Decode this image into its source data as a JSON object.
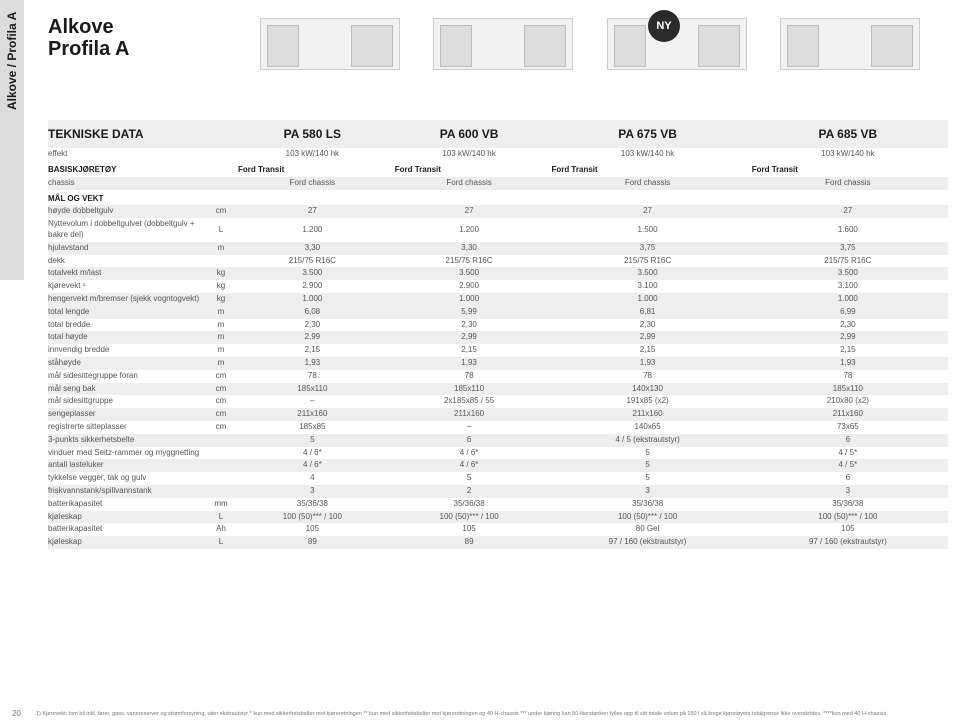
{
  "side_tab": "Alkove / Profila A",
  "title_line1": "Alkove",
  "title_line2": "Profila A",
  "ny_label": "NY",
  "page_number": "20",
  "header": {
    "label": "TEKNISKE DATA",
    "models": [
      "PA 580 LS",
      "PA 600 VB",
      "PA 675 VB",
      "PA 685 VB"
    ]
  },
  "colors": {
    "stripe": "#eeeeee",
    "text": "#555555",
    "heading": "#1a1a1a"
  },
  "sections": [
    {
      "rows": [
        {
          "label": "effekt",
          "unit": "",
          "vals": [
            "103 kW/140 hk",
            "103 kW/140 hk",
            "103 kW/140 hk",
            "103 kW/140 hk"
          ],
          "stripe": false
        }
      ]
    },
    {
      "heading": "BASISKJØRETØY",
      "heading_vals": [
        "Ford Transit",
        "Ford Transit",
        "Ford Transit",
        "Ford Transit"
      ],
      "rows": [
        {
          "label": "chassis",
          "unit": "",
          "vals": [
            "Ford chassis",
            "Ford chassis",
            "Ford chassis",
            "Ford chassis"
          ],
          "stripe": true
        }
      ]
    },
    {
      "heading": "MÅL OG VEKT",
      "rows": [
        {
          "label": "høyde dobbeltgulv",
          "unit": "cm",
          "vals": [
            "27",
            "27",
            "27",
            "27"
          ],
          "stripe": true
        },
        {
          "label": "Nyttevolum i dobbeltgulvet (dobbeltgulv + bakre del)",
          "unit": "L",
          "vals": [
            "1.200",
            "1.200",
            "1.500",
            "1.600"
          ],
          "stripe": false
        },
        {
          "label": "hjulavstand",
          "unit": "m",
          "vals": [
            "3,30",
            "3,30",
            "3,75",
            "3,75"
          ],
          "stripe": true
        },
        {
          "label": "dekk",
          "unit": "",
          "vals": [
            "215/75 R16C",
            "215/75 R16C",
            "215/75 R16C",
            "215/75 R16C"
          ],
          "stripe": false
        },
        {
          "label": "totalvekt m/last",
          "unit": "kg",
          "vals": [
            "3.500",
            "3.500",
            "3.500",
            "3.500"
          ],
          "stripe": true
        },
        {
          "label": "kjørevekt ¹",
          "unit": "kg",
          "vals": [
            "2.900",
            "2.900",
            "3.100",
            "3.100"
          ],
          "stripe": false
        },
        {
          "label": "hengervekt m/bremser (sjekk vogntogvekt)",
          "unit": "kg",
          "vals": [
            "1.000",
            "1.000",
            "1.000",
            "1.000"
          ],
          "stripe": true
        },
        {
          "label": "total lengde",
          "unit": "m",
          "vals": [
            "6,08",
            "5,99",
            "6,81",
            "6,99"
          ],
          "stripe": true
        },
        {
          "label": "total bredde",
          "unit": "m",
          "vals": [
            "2,30",
            "2,30",
            "2,30",
            "2,30"
          ],
          "stripe": false
        },
        {
          "label": "total høyde",
          "unit": "m",
          "vals": [
            "2,99",
            "2,99",
            "2,99",
            "2,99"
          ],
          "stripe": true
        },
        {
          "label": "innvendig bredde",
          "unit": "m",
          "vals": [
            "2,15",
            "2,15",
            "2,15",
            "2,15"
          ],
          "stripe": false
        },
        {
          "label": "ståhøyde",
          "unit": "m",
          "vals": [
            "1,93",
            "1,93",
            "1,93",
            "1,93"
          ],
          "stripe": true
        },
        {
          "label": "mål sidesittegruppe foran",
          "unit": "cm",
          "vals": [
            "78",
            "78",
            "78",
            "78"
          ],
          "stripe": false
        },
        {
          "label": "mål seng bak",
          "unit": "cm",
          "vals": [
            "185x110",
            "185x110",
            "140x130",
            "185x110"
          ],
          "stripe": true
        },
        {
          "label": "mål sidesittgruppe",
          "unit": "cm",
          "vals": [
            "–",
            "2x185x85 / 55",
            "191x85 (x2)",
            "210x80 (x2)"
          ],
          "stripe": false
        },
        {
          "label": "sengeplasser",
          "unit": "cm",
          "vals": [
            "211x160",
            "211x160",
            "211x160",
            "211x160"
          ],
          "stripe": true
        },
        {
          "label": "registrerte sitteplasser",
          "unit": "cm",
          "vals": [
            "185x85",
            "–",
            "140x65",
            "73x65"
          ],
          "stripe": false
        },
        {
          "label": "3-punkts sikkerhetsbelte",
          "unit": "",
          "vals": [
            "5",
            "6",
            "4 / 5 (ekstrautstyr)",
            "6"
          ],
          "stripe": true
        },
        {
          "label": "vinduer med Seitz-rammer og myggnetting",
          "unit": "",
          "vals": [
            "4 / 6*",
            "4 / 6*",
            "5",
            "4 / 5*"
          ],
          "stripe": false
        },
        {
          "label": "antall lasteluker",
          "unit": "",
          "vals": [
            "4 / 6*",
            "4 / 6*",
            "5",
            "4 / 5*"
          ],
          "stripe": true
        },
        {
          "label": "tykkelse vegger, tak og gulv",
          "unit": "",
          "vals": [
            "4",
            "5",
            "5",
            "6"
          ],
          "stripe": false
        },
        {
          "label": "friskvannstank/spillvannstank",
          "unit": "",
          "vals": [
            "3",
            "2",
            "3",
            "3"
          ],
          "stripe": true
        },
        {
          "label": "batterikapasitet",
          "unit": "mm",
          "vals": [
            "35/36/38",
            "35/36/38",
            "35/36/38",
            "35/36/38"
          ],
          "stripe": false
        },
        {
          "label": "kjøleskap",
          "unit": "L",
          "vals": [
            "100 (50)*** / 100",
            "100 (50)*** / 100",
            "100 (50)*** / 100",
            "100 (50)*** / 100"
          ],
          "stripe": true
        },
        {
          "label": "batterikapasitet",
          "unit": "Ah",
          "vals": [
            "105",
            "105",
            "80 Gel",
            "105"
          ],
          "stripe": false
        },
        {
          "label": "kjøleskap",
          "unit": "L",
          "vals": [
            "89",
            "89",
            "97 / 160 (ekstrautstyr)",
            "97 / 160 (ekstrautstyr)"
          ],
          "stripe": true
        }
      ]
    }
  ],
  "footnote": "1) Kjørevekt: tom bil inkl. fører, gass, vannreserver og strømforsyning, uten ekstrautstyr  * kun med sikkerhetsbelter mot kjøreretningen  ** kun med sikkerhetsbelter mot kjøreretningen og 40 H-chassis  *** under kjøring kan 50-literstanken fylles opp til sitt totale volum på 150 l så lenge kjøretøyets totalgrense ikke overskrides.  ****kun med 40 H-chassis"
}
